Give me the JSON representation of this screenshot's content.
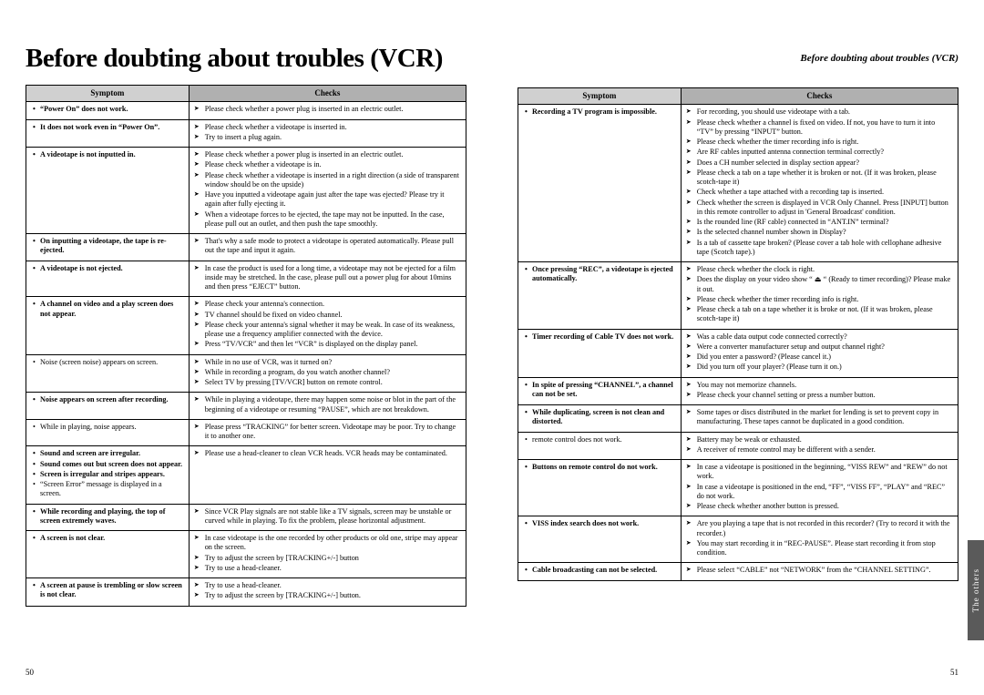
{
  "page_title": "Before doubting about troubles (VCR)",
  "header_right": "Before doubting about troubles (VCR)",
  "col_symptom": "Symptom",
  "col_checks": "Checks",
  "pageno_left": "50",
  "pageno_right": "51",
  "side_tab": "The others",
  "left_rows": [
    {
      "symptoms": [
        {
          "t": "“Power On” does not work.",
          "b": true
        }
      ],
      "checks": [
        "Please check whether a power plug is inserted in an electric outlet."
      ]
    },
    {
      "symptoms": [
        {
          "t": "It does not work even in “Power On”.",
          "b": true
        }
      ],
      "checks": [
        "Please check whether a videotape is inserted in.",
        "Try to insert a plug again."
      ]
    },
    {
      "symptoms": [
        {
          "t": "A videotape is not inputted in.",
          "b": true
        }
      ],
      "checks": [
        "Please check whether a power plug is inserted in an electric outlet.",
        "Please check whether a videotape is in.",
        "Please check whether a videotape is inserted in a right direction (a side of transparent window should be on the upside)",
        "Have you inputted a videotape again just after the tape was ejected? Please try it again after fully ejecting it.",
        "When a videotape forces to be ejected, the tape may not be inputted. In the case, please pull out an outlet, and then push the tape smoothly."
      ]
    },
    {
      "symptoms": [
        {
          "t": "On inputting a videotape, the tape is re-ejected.",
          "b": true
        }
      ],
      "checks": [
        "That's why a safe mode to protect a videotape is operated automatically. Please pull out the tape and input it again."
      ]
    },
    {
      "symptoms": [
        {
          "t": "A videotape is not ejected.",
          "b": true
        }
      ],
      "checks": [
        "In case the product is used for a long time, a videotape may not be ejected for a film inside may be stretched. In the case, please pull out a power plug for about 10mins and then press “EJECT” button."
      ]
    },
    {
      "symptoms": [
        {
          "t": "A channel on video and a play screen does not appear.",
          "b": true
        }
      ],
      "checks": [
        "Please check your antenna's connection.",
        "TV channel should be fixed on video channel.",
        "Please check your antenna's signal whether it may be weak. In case of its weakness, please use a frequency amplifier connected with the device.",
        "Press “TV/VCR” and then let “VCR” is displayed on the display panel."
      ]
    },
    {
      "symptoms": [
        {
          "t": "Noise (screen noise) appears on screen.",
          "b": false
        }
      ],
      "checks": [
        "While in no use of VCR, was it turned on?",
        "While in recording a program, do you watch another channel?",
        "Select TV by pressing [TV/VCR] button on remote control."
      ]
    },
    {
      "symptoms": [
        {
          "t": "Noise appears on screen after recording.",
          "b": true
        }
      ],
      "checks": [
        "While in playing a videotape, there may happen some noise or blot in the part of the beginning of a videotape or resuming “PAUSE”, which are not breakdown."
      ]
    },
    {
      "symptoms": [
        {
          "t": "While in playing, noise appears.",
          "b": false
        }
      ],
      "checks": [
        "Please press “TRACKING” for better screen. Videotape may be poor. Try to change it to another one."
      ]
    },
    {
      "symptoms": [
        {
          "t": "Sound and screen are irregular.",
          "b": true
        },
        {
          "t": "Sound comes out but screen does not appear.",
          "b": true
        },
        {
          "t": "Screen is irregular and stripes appears.",
          "b": true
        },
        {
          "t": "“Screen Error” message is displayed in a screen.",
          "b": false
        }
      ],
      "checks": [
        "Please use a head-cleaner to clean VCR heads. VCR heads may be contaminated."
      ]
    },
    {
      "symptoms": [
        {
          "t": "While recording and playing, the top of screen extremely waves.",
          "b": true
        }
      ],
      "checks": [
        "Since VCR Play signals are not stable like a TV signals, screen may be unstable or curved while in playing. To fix the problem, please horizontal adjustment."
      ]
    },
    {
      "symptoms": [
        {
          "t": "A screen is not clear.",
          "b": true
        }
      ],
      "checks": [
        "In case videotape is the one recorded by other products or old one, stripe may appear on the screen.",
        "Try to adjust the screen by [TRACKING+/-] button",
        "Try to use a head-cleaner."
      ]
    },
    {
      "symptoms": [
        {
          "t": "A screen at pause is trembling or slow screen is not clear.",
          "b": true
        }
      ],
      "checks": [
        "Try to use a head-cleaner.",
        "Try to adjust the screen by [TRACKING+/-] button."
      ]
    }
  ],
  "right_rows": [
    {
      "symptoms": [
        {
          "t": "Recording a TV program is impossible.",
          "b": true
        }
      ],
      "checks": [
        "For recording, you should use videotape with a tab.",
        "Please check whether a channel is fixed on video. If not, you have to turn it into “TV” by pressing “INPUT” button.",
        "Please check whether the timer recording info is right.",
        "Are RF cables inputted antenna connection terminal correctly?",
        "Does a CH number selected in display section appear?",
        "Please check a tab on a tape whether it is broken or not. (If it was broken, please scotch-tape it)",
        "Check whether a tape attached with a recording tap is inserted.",
        "Check whether the screen is displayed in VCR Only Channel. Press [INPUT] button in this remote controller to adjust in 'General Broadcast' condition.",
        "Is the rounded line (RF cable) connected in “ANT.IN” terminal?",
        "Is the selected channel number shown in Display?",
        "Is a tab of cassette tape broken? (Please cover a tab hole with cellophane adhesive tape (Scotch tape).)"
      ]
    },
    {
      "symptoms": [
        {
          "t": "Once pressing “REC”, a videotape is ejected automatically.",
          "b": true
        }
      ],
      "checks": [
        "Please check whether the clock is right.",
        "Does the display on your video show “ ⏏ “ (Ready to timer recording)? Please make it out.",
        "Please check whether the timer recording info is right.",
        "Please check a tab on a tape whether it is broke or not. (If it was broken, please scotch-tape it)"
      ]
    },
    {
      "symptoms": [
        {
          "t": "Timer recording of Cable TV does not work.",
          "b": true
        }
      ],
      "checks": [
        "Was a cable data output code connected correctly?",
        "Were a converter manufacturer setup and output channel right?",
        "Did you enter a password? (Please cancel it.)",
        "Did you turn off your player? (Please turn it on.)"
      ]
    },
    {
      "symptoms": [
        {
          "t": "In spite of pressing “CHANNEL”, a channel can not be set.",
          "b": true
        }
      ],
      "checks": [
        "You may not memorize channels.",
        "Please check your channel setting or press a number button."
      ]
    },
    {
      "symptoms": [
        {
          "t": "While duplicating, screen is not clean and distorted.",
          "b": true
        }
      ],
      "checks": [
        "Some tapes or discs distributed in the market for lending is set to prevent copy in manufacturing. These tapes cannot be duplicated in a good condition."
      ]
    },
    {
      "symptoms": [
        {
          "t": "remote control does not work.",
          "b": false
        }
      ],
      "checks": [
        "Battery may be weak or exhausted.",
        "A receiver of remote control may be different with a sender."
      ]
    },
    {
      "symptoms": [
        {
          "t": "Buttons on remote control do not work.",
          "b": true
        }
      ],
      "checks": [
        "In case a videotape is positioned in the beginning, “VISS REW” and “REW” do not work.",
        "In case a videotape is positioned in the end, “FF”, “VISS FF”, “PLAY” and “REC” do not work.",
        "Please check whether another button is pressed."
      ]
    },
    {
      "symptoms": [
        {
          "t": "VISS index search does not work.",
          "b": true
        }
      ],
      "checks": [
        "Are you playing a tape that is not recorded in this recorder? (Try to record it with the recorder.)",
        "You may start recording it in “REC-PAUSE”. Please start recording it from stop condition."
      ]
    },
    {
      "symptoms": [
        {
          "t": "Cable broadcasting can not be selected.",
          "b": true
        }
      ],
      "checks": [
        "Please select “CABLE” not “NETWORK” from the “CHANNEL SETTING”."
      ]
    }
  ]
}
